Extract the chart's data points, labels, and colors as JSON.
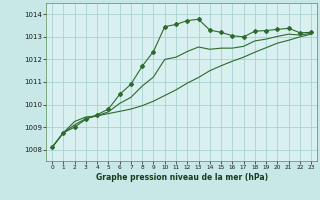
{
  "background_color": "#c8e8e8",
  "plot_bg_color": "#d8f0f0",
  "grid_color": "#a0cccc",
  "line_color": "#2d6a2d",
  "xlabel": "Graphe pression niveau de la mer (hPa)",
  "xlim": [
    -0.5,
    23.5
  ],
  "ylim": [
    1007.5,
    1014.5
  ],
  "yticks": [
    1008,
    1009,
    1010,
    1011,
    1012,
    1013,
    1014
  ],
  "xticks": [
    0,
    1,
    2,
    3,
    4,
    5,
    6,
    7,
    8,
    9,
    10,
    11,
    12,
    13,
    14,
    15,
    16,
    17,
    18,
    19,
    20,
    21,
    22,
    23
  ],
  "series1_x": [
    0,
    1,
    2,
    3,
    4,
    5,
    6,
    7,
    8,
    9,
    10,
    11,
    12,
    13,
    14,
    15,
    16,
    17,
    18,
    19,
    20,
    21,
    22,
    23
  ],
  "series1_y": [
    1008.1,
    1008.75,
    1009.0,
    1009.35,
    1009.55,
    1009.8,
    1010.45,
    1010.9,
    1011.7,
    1012.35,
    1013.45,
    1013.55,
    1013.72,
    1013.78,
    1013.3,
    1013.2,
    1013.05,
    1013.0,
    1013.25,
    1013.28,
    1013.33,
    1013.38,
    1013.18,
    1013.2
  ],
  "series2_x": [
    0,
    1,
    2,
    3,
    4,
    5,
    6,
    7,
    8,
    9,
    10,
    11,
    12,
    13,
    14,
    15,
    16,
    17,
    18,
    19,
    20,
    21,
    22,
    23
  ],
  "series2_y": [
    1008.1,
    1008.75,
    1009.25,
    1009.45,
    1009.5,
    1009.6,
    1009.7,
    1009.8,
    1009.95,
    1010.15,
    1010.4,
    1010.65,
    1010.95,
    1011.2,
    1011.5,
    1011.72,
    1011.92,
    1012.1,
    1012.32,
    1012.52,
    1012.72,
    1012.85,
    1013.0,
    1013.12
  ],
  "series3_x": [
    0,
    1,
    2,
    3,
    4,
    5,
    6,
    7,
    8,
    9,
    10,
    11,
    12,
    13,
    14,
    15,
    16,
    17,
    18,
    19,
    20,
    21,
    22,
    23
  ],
  "series3_y": [
    1008.1,
    1008.75,
    1009.1,
    1009.38,
    1009.5,
    1009.68,
    1010.05,
    1010.32,
    1010.82,
    1011.22,
    1012.0,
    1012.1,
    1012.35,
    1012.55,
    1012.45,
    1012.5,
    1012.5,
    1012.58,
    1012.82,
    1012.9,
    1013.02,
    1013.12,
    1013.08,
    1013.16
  ]
}
